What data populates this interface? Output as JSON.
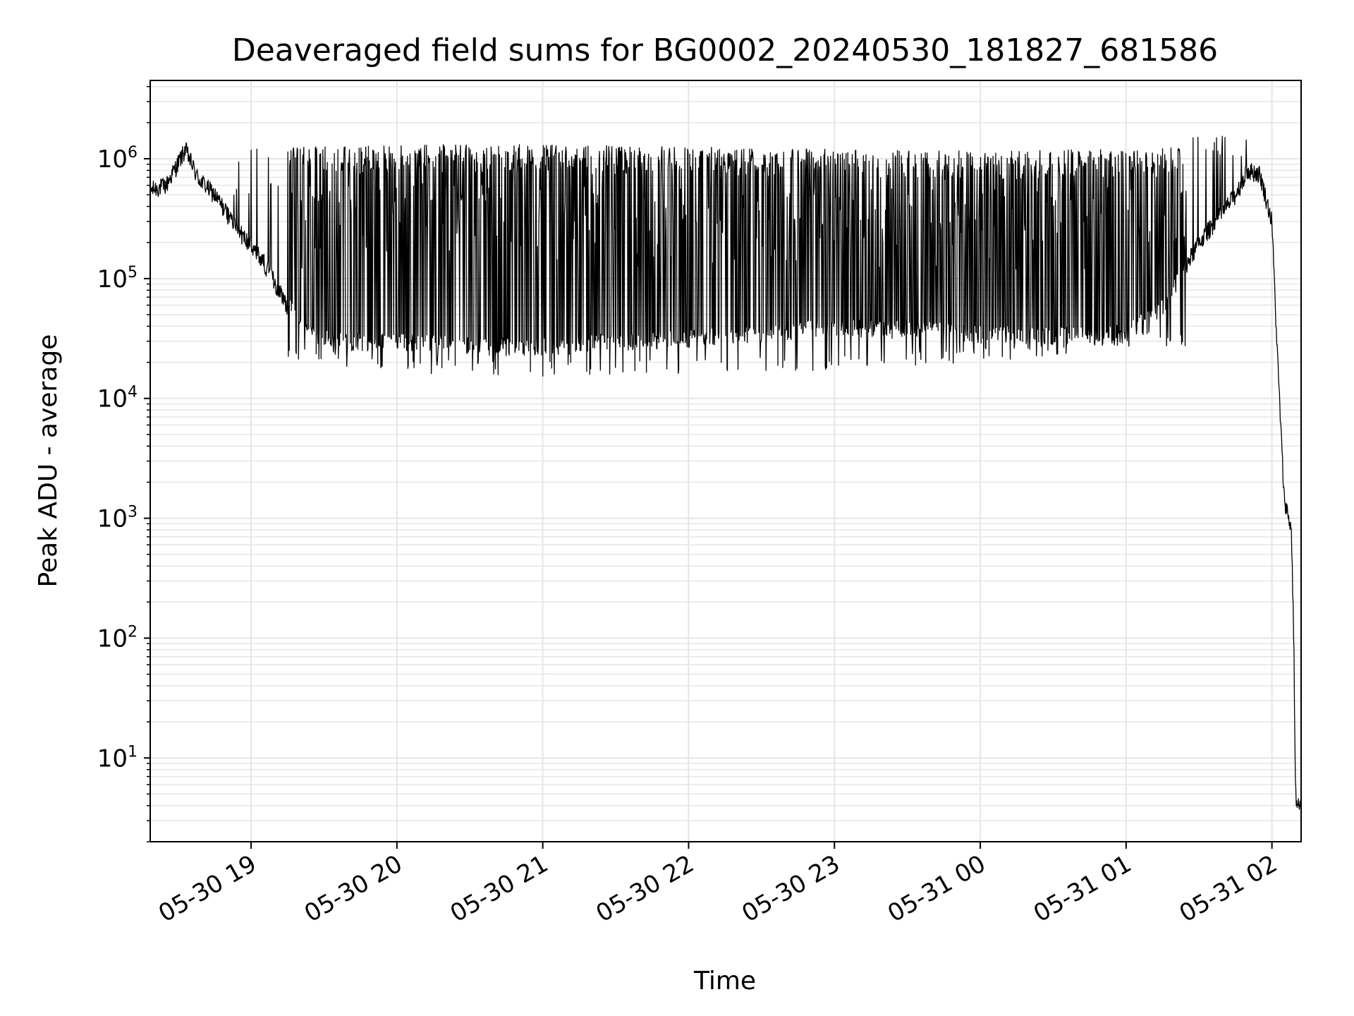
{
  "chart_data": {
    "type": "line",
    "title": "Deaveraged field sums for BG0002_20240530_181827_681586",
    "xlabel": "Time",
    "ylabel": "Peak ADU - average",
    "y_scale": "log",
    "ylim": [
      2,
      4500000.0
    ],
    "xlim": [
      "2024-05-30T18:18:30",
      "2024-05-31T02:12:00"
    ],
    "grid": true,
    "line_color": "#000000",
    "grid_color": "#e6e6e6",
    "x_ticks": [
      {
        "t": "2024-05-30T19:00:00",
        "label": "05-30 19"
      },
      {
        "t": "2024-05-30T20:00:00",
        "label": "05-30 20"
      },
      {
        "t": "2024-05-30T21:00:00",
        "label": "05-30 21"
      },
      {
        "t": "2024-05-30T22:00:00",
        "label": "05-30 22"
      },
      {
        "t": "2024-05-30T23:00:00",
        "label": "05-30 23"
      },
      {
        "t": "2024-05-31T00:00:00",
        "label": "05-31 00"
      },
      {
        "t": "2024-05-31T01:00:00",
        "label": "05-31 01"
      },
      {
        "t": "2024-05-31T02:00:00",
        "label": "05-31 02"
      }
    ],
    "y_ticks": [
      {
        "value": 10,
        "base": "10",
        "exp": "1"
      },
      {
        "value": 100,
        "base": "10",
        "exp": "2"
      },
      {
        "value": 1000,
        "base": "10",
        "exp": "3"
      },
      {
        "value": 10000,
        "base": "10",
        "exp": "4"
      },
      {
        "value": 100000,
        "base": "10",
        "exp": "5"
      },
      {
        "value": 1000000,
        "base": "10",
        "exp": "6"
      }
    ],
    "baseline": {
      "x": [
        "2024-05-30T18:18:30",
        "2024-05-30T18:25:00",
        "2024-05-30T18:33:00",
        "2024-05-30T18:38:00",
        "2024-05-30T18:45:00",
        "2024-05-30T18:55:00",
        "2024-05-30T19:05:00",
        "2024-05-30T19:15:00",
        "2024-05-30T19:25:00",
        "2024-05-30T19:40:00",
        "2024-05-30T20:00:00",
        "2024-05-30T20:30:00",
        "2024-05-30T21:00:00",
        "2024-05-30T21:30:00",
        "2024-05-30T22:00:00",
        "2024-05-30T22:30:00",
        "2024-05-30T23:00:00",
        "2024-05-30T23:30:00",
        "2024-05-31T00:00:00",
        "2024-05-31T00:30:00",
        "2024-05-31T01:00:00",
        "2024-05-31T01:15:00",
        "2024-05-31T01:30:00",
        "2024-05-31T01:45:00",
        "2024-05-31T01:50:00",
        "2024-05-31T01:55:00",
        "2024-05-31T02:00:00",
        "2024-05-31T02:02:00",
        "2024-05-31T02:05:00",
        "2024-05-31T02:08:00",
        "2024-05-31T02:09:00",
        "2024-05-31T02:09:30",
        "2024-05-31T02:10:00",
        "2024-05-31T02:12:00"
      ],
      "y": [
        550000,
        600000,
        1200000,
        700000,
        500000,
        250000,
        140000,
        60000,
        35000,
        30000,
        30000,
        28000,
        27000,
        30000,
        32000,
        35000,
        40000,
        38000,
        35000,
        34000,
        35000,
        60000,
        200000,
        500000,
        800000,
        750000,
        300000,
        30000,
        1500,
        800,
        100,
        10,
        4,
        4
      ]
    },
    "spike_envelope": {
      "x": [
        "2024-05-30T18:50:00",
        "2024-05-30T19:20:00",
        "2024-05-30T19:40:00",
        "2024-05-30T20:00:00",
        "2024-05-30T21:00:00",
        "2024-05-30T22:00:00",
        "2024-05-30T23:00:00",
        "2024-05-31T00:00:00",
        "2024-05-31T01:00:00",
        "2024-05-31T01:30:00"
      ],
      "y": [
        1000000,
        1200000,
        1200000,
        1250000,
        1250000,
        1200000,
        1150000,
        1100000,
        1150000,
        1200000
      ]
    },
    "dip_floor": {
      "x": [
        "2024-05-30T19:00:00",
        "2024-05-30T19:20:00",
        "2024-05-30T20:00:00",
        "2024-05-30T21:00:00",
        "2024-05-30T22:00:00",
        "2024-05-30T23:00:00",
        "2024-05-31T00:00:00",
        "2024-05-31T01:00:00"
      ],
      "y": [
        30000,
        22000,
        18000,
        17000,
        18000,
        19000,
        22000,
        30000
      ]
    }
  }
}
